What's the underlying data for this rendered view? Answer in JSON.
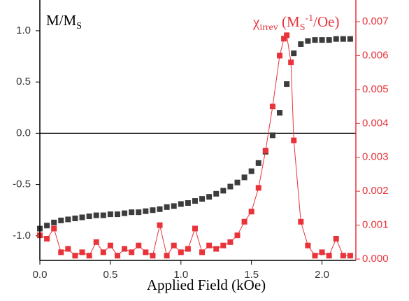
{
  "chart_data": {
    "type": "scatter",
    "x_label": "Applied Field (kOe)",
    "y_label": {
      "text": "M/M",
      "sub": "S"
    },
    "y2_label": {
      "symbol": "χ",
      "sub": "irrev",
      "open": " (M",
      "unit_sub": "S",
      "sup": "-1",
      "close": "/Oe)"
    },
    "xlim": [
      0,
      2.24
    ],
    "ylim": [
      -1.24,
      1.3
    ],
    "y2lim": [
      -4e-05,
      0.00764
    ],
    "xticks": [
      {
        "value": 0,
        "label": "0.0"
      },
      {
        "value": 0.5,
        "label": "0.5"
      },
      {
        "value": 1,
        "label": "1.0"
      },
      {
        "value": 1.5,
        "label": "1.5"
      },
      {
        "value": 2,
        "label": "2.0"
      }
    ],
    "yticks": [
      {
        "value": -1,
        "label": "-1.0"
      },
      {
        "value": -0.5,
        "label": "-0.5"
      },
      {
        "value": 0,
        "label": "0.0"
      },
      {
        "value": 0.5,
        "label": "0.5"
      },
      {
        "value": 1,
        "label": "1.0"
      }
    ],
    "y2ticks": [
      {
        "value": 0,
        "label": "0.000"
      },
      {
        "value": 0.001,
        "label": "0.001"
      },
      {
        "value": 0.002,
        "label": "0.002"
      },
      {
        "value": 0.003,
        "label": "0.003"
      },
      {
        "value": 0.004,
        "label": "0.004"
      },
      {
        "value": 0.005,
        "label": "0.005"
      },
      {
        "value": 0.006,
        "label": "0.006"
      },
      {
        "value": 0.007,
        "label": "0.007"
      }
    ],
    "zero_line": true,
    "series": [
      {
        "color": "#3c3c3c",
        "line": false,
        "x": [
          0,
          0.05,
          0.1,
          0.15,
          0.2,
          0.25,
          0.3,
          0.35,
          0.4,
          0.45,
          0.5,
          0.55,
          0.6,
          0.65,
          0.7,
          0.75,
          0.8,
          0.85,
          0.9,
          0.95,
          1.0,
          1.05,
          1.1,
          1.15,
          1.2,
          1.25,
          1.3,
          1.35,
          1.4,
          1.45,
          1.5,
          1.55,
          1.6,
          1.65,
          1.7,
          1.75,
          1.8,
          1.85,
          1.9,
          1.95,
          2.0,
          2.05,
          2.1,
          2.15,
          2.2
        ],
        "values": [
          -0.93,
          -0.9,
          -0.87,
          -0.85,
          -0.84,
          -0.83,
          -0.82,
          -0.81,
          -0.8,
          -0.8,
          -0.79,
          -0.79,
          -0.78,
          -0.77,
          -0.77,
          -0.76,
          -0.75,
          -0.74,
          -0.72,
          -0.71,
          -0.69,
          -0.68,
          -0.66,
          -0.64,
          -0.62,
          -0.59,
          -0.56,
          -0.52,
          -0.48,
          -0.43,
          -0.37,
          -0.29,
          -0.18,
          -0.02,
          0.2,
          0.48,
          0.78,
          0.87,
          0.9,
          0.91,
          0.91,
          0.91,
          0.92,
          0.92,
          0.92
        ]
      },
      {
        "color": "#e8333a",
        "line": true,
        "axis": "y2",
        "x": [
          0,
          0.05,
          0.1,
          0.15,
          0.2,
          0.25,
          0.3,
          0.35,
          0.4,
          0.45,
          0.5,
          0.55,
          0.6,
          0.65,
          0.7,
          0.75,
          0.8,
          0.85,
          0.9,
          0.95,
          1.0,
          1.05,
          1.1,
          1.15,
          1.2,
          1.25,
          1.3,
          1.35,
          1.4,
          1.45,
          1.5,
          1.55,
          1.6,
          1.65,
          1.7,
          1.73,
          1.75,
          1.78,
          1.8,
          1.85,
          1.9,
          1.95,
          2.0,
          2.05,
          2.1,
          2.15,
          2.2
        ],
        "values": [
          0.0007,
          0.0006,
          0.0009,
          0.0002,
          0.0003,
          0.0001,
          0.0002,
          0.0001,
          0.0005,
          0.0002,
          0.0004,
          0.0001,
          0.0003,
          0.0002,
          0.0004,
          0.0002,
          0.0001,
          0.001,
          0.0001,
          0.0004,
          0.0002,
          0.0003,
          0.0009,
          0.0002,
          0.0004,
          0.0003,
          0.0004,
          0.0005,
          0.0007,
          0.0011,
          0.0014,
          0.0021,
          0.0032,
          0.0045,
          0.006,
          0.0065,
          0.0066,
          0.0058,
          0.0035,
          0.0011,
          0.0004,
          0.0001,
          0.0002,
          0.0001,
          0.0006,
          0.0001,
          0.0001
        ]
      }
    ]
  }
}
